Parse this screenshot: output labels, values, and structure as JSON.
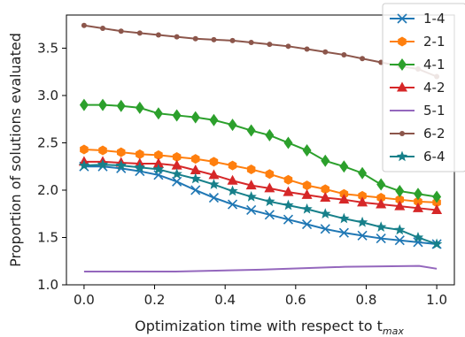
{
  "chart_data": {
    "type": "line",
    "xlabel": "Optimization time with respect to t",
    "xlabel_subscript": "max",
    "ylabel": "Proportion of solutions evaluated",
    "xlim": [
      -0.05,
      1.05
    ],
    "ylim": [
      1.0,
      3.85
    ],
    "xticks": [
      "0.0",
      "0.2",
      "0.4",
      "0.6",
      "0.8",
      "1.0"
    ],
    "yticks": [
      "1.0",
      "1.5",
      "2.0",
      "2.5",
      "3.0",
      "3.5"
    ],
    "grid": false,
    "legend_position": "top-right",
    "x": [
      0.0,
      0.053,
      0.105,
      0.158,
      0.211,
      0.263,
      0.316,
      0.368,
      0.421,
      0.474,
      0.526,
      0.579,
      0.632,
      0.684,
      0.737,
      0.789,
      0.842,
      0.895,
      0.947,
      1.0
    ],
    "series": [
      {
        "name": "1-4",
        "color": "#1f77b4",
        "marker": "x",
        "values": [
          2.25,
          2.25,
          2.23,
          2.2,
          2.16,
          2.09,
          2.0,
          1.92,
          1.85,
          1.79,
          1.74,
          1.69,
          1.64,
          1.59,
          1.55,
          1.52,
          1.49,
          1.47,
          1.45,
          1.43
        ]
      },
      {
        "name": "2-1",
        "color": "#ff7f0e",
        "marker": "hexagon",
        "values": [
          2.43,
          2.42,
          2.4,
          2.38,
          2.37,
          2.35,
          2.33,
          2.3,
          2.26,
          2.22,
          2.17,
          2.11,
          2.05,
          2.01,
          1.96,
          1.94,
          1.92,
          1.9,
          1.88,
          1.87
        ]
      },
      {
        "name": "4-1",
        "color": "#2ca02c",
        "marker": "diamond",
        "values": [
          2.9,
          2.9,
          2.89,
          2.87,
          2.81,
          2.79,
          2.77,
          2.74,
          2.69,
          2.63,
          2.58,
          2.5,
          2.42,
          2.31,
          2.25,
          2.18,
          2.06,
          1.99,
          1.96,
          1.93
        ]
      },
      {
        "name": "4-2",
        "color": "#d62728",
        "marker": "triangle",
        "values": [
          2.3,
          2.3,
          2.29,
          2.28,
          2.28,
          2.26,
          2.21,
          2.16,
          2.1,
          2.05,
          2.02,
          1.98,
          1.95,
          1.92,
          1.9,
          1.87,
          1.85,
          1.83,
          1.81,
          1.79
        ]
      },
      {
        "name": "5-1",
        "color": "#9467bd",
        "marker": "none",
        "x": [
          0.0,
          0.26,
          0.5,
          0.74,
          0.95,
          1.0
        ],
        "values": [
          1.14,
          1.14,
          1.16,
          1.19,
          1.2,
          1.17
        ]
      },
      {
        "name": "6-2",
        "color": "#8c564b",
        "marker": "dot",
        "values": [
          3.74,
          3.71,
          3.68,
          3.66,
          3.64,
          3.62,
          3.6,
          3.59,
          3.58,
          3.56,
          3.54,
          3.52,
          3.49,
          3.46,
          3.43,
          3.39,
          3.35,
          3.31,
          3.28,
          3.2
        ]
      },
      {
        "name": "6-4",
        "color": "#17808a",
        "marker": "star",
        "values": [
          2.26,
          2.27,
          2.26,
          2.24,
          2.22,
          2.17,
          2.12,
          2.06,
          1.99,
          1.93,
          1.88,
          1.84,
          1.8,
          1.75,
          1.7,
          1.66,
          1.61,
          1.58,
          1.5,
          1.43
        ]
      }
    ]
  }
}
